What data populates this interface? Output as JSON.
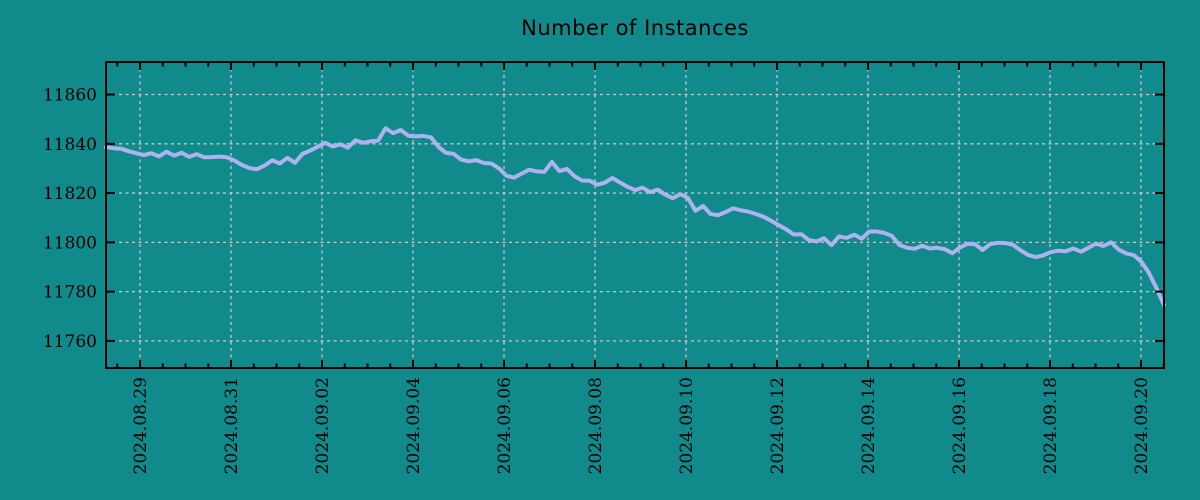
{
  "figure": {
    "background_color": "#118a8c"
  },
  "chart_data": {
    "type": "line",
    "title": "Number of Instances",
    "xlabel": "",
    "ylabel": "",
    "grid": true,
    "legend": "none",
    "x_tick_labels": [
      "2024.08.29",
      "2024.08.31",
      "2024.09.02",
      "2024.09.04",
      "2024.09.06",
      "2024.09.08",
      "2024.09.10",
      "2024.09.12",
      "2024.09.14",
      "2024.09.16",
      "2024.09.18",
      "2024.09.20"
    ],
    "y_tick_labels": [
      11760,
      11780,
      11800,
      11820,
      11840,
      11860
    ],
    "ylim": [
      11749.0,
      11873.2
    ],
    "axis_layout": {
      "first_major_tick_frac": 0.03214,
      "major_tick_spacing_frac": 0.08601,
      "minor_per_major": 4
    },
    "colors": {
      "background": "#118a8c",
      "line": "#aeb2ee",
      "grid": "#c8c8c8",
      "frame": "#000000",
      "text": "#000000"
    },
    "series": [
      {
        "name": "Number of Instances",
        "color": "#aeb2ee",
        "values": [
          11838.6,
          11838.2,
          11838.0,
          11837.0,
          11836.2,
          11835.4,
          11836.2,
          11834.9,
          11836.8,
          11835.2,
          11836.4,
          11834.7,
          11835.8,
          11834.5,
          11834.6,
          11834.8,
          11834.5,
          11833.2,
          11831.4,
          11830.1,
          11829.7,
          11831.2,
          11833.3,
          11832.0,
          11834.3,
          11832.3,
          11835.9,
          11837.2,
          11838.8,
          11840.4,
          11838.9,
          11839.8,
          11838.4,
          11841.4,
          11840.4,
          11841.0,
          11841.3,
          11846.3,
          11844.3,
          11845.6,
          11843.3,
          11843.0,
          11843.2,
          11842.6,
          11838.7,
          11836.3,
          11835.9,
          11833.6,
          11832.9,
          11833.4,
          11832.2,
          11832.0,
          11830.0,
          11827.0,
          11826.3,
          11827.9,
          11829.5,
          11828.8,
          11828.6,
          11832.6,
          11828.9,
          11829.8,
          11826.8,
          11825.1,
          11825.0,
          11823.4,
          11824.2,
          11826.1,
          11824.3,
          11822.6,
          11821.2,
          11822.2,
          11820.4,
          11821.4,
          11819.4,
          11817.9,
          11819.6,
          11818.0,
          11812.8,
          11814.8,
          11811.5,
          11811.0,
          11812.3,
          11813.8,
          11813.0,
          11812.5,
          11811.5,
          11810.4,
          11808.8,
          11807.0,
          11805.3,
          11803.2,
          11803.3,
          11800.9,
          11800.3,
          11801.7,
          11798.9,
          11802.4,
          11801.8,
          11803.1,
          11801.5,
          11804.4,
          11804.4,
          11803.8,
          11802.6,
          11798.9,
          11797.8,
          11797.4,
          11798.6,
          11797.5,
          11797.8,
          11797.2,
          11795.6,
          11797.9,
          11799.4,
          11799.2,
          11796.9,
          11799.3,
          11799.8,
          11799.7,
          11799.0,
          11796.8,
          11794.9,
          11794.0,
          11794.7,
          11796.0,
          11796.6,
          11796.4,
          11797.5,
          11796.2,
          11797.8,
          11799.5,
          11798.5,
          11800.0,
          11797.0,
          11795.5,
          11794.8,
          11792.2,
          11787.6,
          11781.5,
          11774.5
        ]
      }
    ]
  }
}
